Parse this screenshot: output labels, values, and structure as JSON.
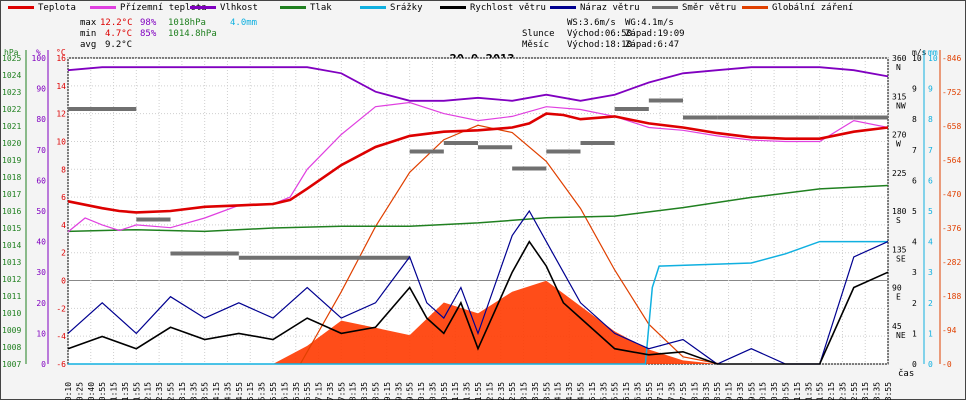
{
  "legend": [
    {
      "label": "Teplota",
      "color": "#dd0000"
    },
    {
      "label": "Přízemní teplota",
      "color": "#e040e0"
    },
    {
      "label": "Vlhkost",
      "color": "#8000c0"
    },
    {
      "label": "Tlak",
      "color": "#208020"
    },
    {
      "label": "Srážky",
      "color": "#10b0e0"
    },
    {
      "label": "Rychlost větru",
      "color": "#000000"
    },
    {
      "label": "Náraz větru",
      "color": "#000090"
    },
    {
      "label": "Směr větru",
      "color": "#707070"
    },
    {
      "label": "Globální záření",
      "color": "#e04000"
    }
  ],
  "stats": {
    "max_label": "max",
    "max_temp": "12.2°C",
    "max_hum": "98%",
    "max_press": "1018hPa",
    "max_rain": "4.0mm",
    "min_label": "min",
    "min_temp": "4.7°C",
    "min_hum": "85%",
    "min_press": "1014.8hPa",
    "avg_label": "avg",
    "avg_temp": "9.2°C",
    "ws": "WS:3.6m/s",
    "wg": "WG:4.1m/s",
    "sun_label": "Slunce",
    "sunrise": "Východ:06:50",
    "sunset": "Západ:19:09",
    "moon_label": "Měsíc",
    "moonrise": "Východ:18:10",
    "moonset": "Západ:6:47"
  },
  "chart_data": {
    "type": "line",
    "title": "20.9.2013",
    "xlabel": "čas",
    "x_ticks": [
      "00:10",
      "00:25",
      "00:40",
      "00:55",
      "01:15",
      "01:35",
      "01:55",
      "02:15",
      "02:35",
      "02:55",
      "03:15",
      "03:35",
      "03:55",
      "04:15",
      "04:35",
      "04:55",
      "05:15",
      "05:35",
      "05:55",
      "06:15",
      "06:35",
      "06:55",
      "07:15",
      "07:35",
      "07:55",
      "08:15",
      "08:35",
      "08:55",
      "09:15",
      "09:35",
      "09:55",
      "10:15",
      "10:35",
      "10:55",
      "11:15",
      "11:35",
      "11:55",
      "12:15",
      "12:35",
      "12:55",
      "13:15",
      "13:35",
      "13:55",
      "14:15",
      "14:35",
      "14:55",
      "15:15",
      "15:35",
      "15:55",
      "16:15",
      "16:35",
      "16:55",
      "17:15",
      "17:35",
      "17:55",
      "18:15",
      "18:35",
      "18:55",
      "19:15",
      "19:35",
      "19:55",
      "20:15",
      "20:35",
      "20:55",
      "21:15",
      "21:35",
      "21:55",
      "22:15",
      "22:35",
      "22:55",
      "23:15",
      "23:35",
      "23:55"
    ],
    "axes": {
      "hpa": {
        "label": "hPa",
        "color": "#208020",
        "ticks": [
          "1025",
          "1024",
          "1023",
          "1022",
          "1021",
          "1020",
          "1019",
          "1018",
          "1017",
          "1016",
          "1015",
          "1014",
          "1013",
          "1012",
          "1011",
          "1010",
          "1009",
          "1008",
          "1007"
        ]
      },
      "pct": {
        "label": "%",
        "color": "#8000c0",
        "ticks": [
          "100",
          "90",
          "80",
          "70",
          "60",
          "50",
          "40",
          "30",
          "20",
          "10",
          "0"
        ]
      },
      "degc": {
        "label": "°C",
        "color": "#dd0000",
        "ticks": [
          "16",
          "14",
          "12",
          "10",
          "8",
          "6",
          "4",
          "2",
          "0",
          "-2",
          "-4",
          "-6"
        ]
      },
      "dir": {
        "label": "m/s",
        "ticks": [
          "360 N",
          "315 NW",
          "270 W",
          "225",
          "180 S",
          "135 SE",
          "90 E",
          "45 NE"
        ]
      },
      "ms": {
        "label": "m/s",
        "color": "#000000",
        "ticks": [
          "10",
          "9",
          "8",
          "7",
          "6",
          "5",
          "4",
          "3",
          "2",
          "1",
          "0"
        ]
      },
      "mm": {
        "label": "mm",
        "color": "#10b0e0",
        "ticks": [
          "10",
          "9",
          "8",
          "7",
          "6",
          "5",
          "4",
          "3",
          "2",
          "1",
          "0"
        ]
      },
      "wm2": {
        "label": "W/m²",
        "color": "#e04000",
        "ticks": [
          "846",
          "752",
          "658",
          "564",
          "470",
          "376",
          "282",
          "188",
          "94",
          "0"
        ]
      }
    },
    "series": [
      {
        "name": "Teplota",
        "color": "#dd0000",
        "unit": "°C",
        "values": [
          [
            0,
            5.7
          ],
          [
            1,
            5.2
          ],
          [
            1.5,
            5.0
          ],
          [
            2,
            4.9
          ],
          [
            3,
            5.0
          ],
          [
            4,
            5.3
          ],
          [
            5,
            5.4
          ],
          [
            6,
            5.5
          ],
          [
            6.5,
            5.8
          ],
          [
            7,
            6.6
          ],
          [
            8,
            8.3
          ],
          [
            9,
            9.6
          ],
          [
            10,
            10.4
          ],
          [
            11,
            10.7
          ],
          [
            12,
            10.8
          ],
          [
            13,
            11.0
          ],
          [
            13.5,
            11.3
          ],
          [
            14,
            12.0
          ],
          [
            14.5,
            11.9
          ],
          [
            15,
            11.6
          ],
          [
            16,
            11.8
          ],
          [
            17,
            11.3
          ],
          [
            18,
            11.0
          ],
          [
            19,
            10.6
          ],
          [
            20,
            10.3
          ],
          [
            21,
            10.2
          ],
          [
            22,
            10.2
          ],
          [
            23,
            10.7
          ],
          [
            24,
            11.0
          ]
        ]
      },
      {
        "name": "Přízemní teplota",
        "color": "#e040e0",
        "unit": "°C",
        "values": [
          [
            0,
            3.5
          ],
          [
            0.5,
            4.5
          ],
          [
            1,
            4.0
          ],
          [
            1.5,
            3.6
          ],
          [
            2,
            4.0
          ],
          [
            3,
            3.8
          ],
          [
            4,
            4.5
          ],
          [
            5,
            5.4
          ],
          [
            6,
            5.5
          ],
          [
            6.5,
            6.0
          ],
          [
            7,
            8.0
          ],
          [
            8,
            10.5
          ],
          [
            9,
            12.5
          ],
          [
            10,
            12.8
          ],
          [
            11,
            12.0
          ],
          [
            12,
            11.5
          ],
          [
            13,
            11.8
          ],
          [
            14,
            12.5
          ],
          [
            15,
            12.3
          ],
          [
            16,
            11.8
          ],
          [
            17,
            11.0
          ],
          [
            18,
            10.8
          ],
          [
            19,
            10.4
          ],
          [
            20,
            10.1
          ],
          [
            21,
            10.0
          ],
          [
            22,
            10.0
          ],
          [
            23,
            11.5
          ],
          [
            24,
            11.0
          ]
        ]
      },
      {
        "name": "Vlhkost",
        "color": "#8000c0",
        "unit": "%",
        "values": [
          [
            0,
            96
          ],
          [
            1,
            97
          ],
          [
            2,
            97
          ],
          [
            3,
            97
          ],
          [
            4,
            97
          ],
          [
            5,
            97
          ],
          [
            6,
            97
          ],
          [
            7,
            97
          ],
          [
            8,
            95
          ],
          [
            9,
            89
          ],
          [
            10,
            86
          ],
          [
            11,
            86
          ],
          [
            12,
            87
          ],
          [
            13,
            86
          ],
          [
            14,
            88
          ],
          [
            15,
            86
          ],
          [
            16,
            88
          ],
          [
            17,
            92
          ],
          [
            18,
            95
          ],
          [
            19,
            96
          ],
          [
            20,
            97
          ],
          [
            21,
            97
          ],
          [
            22,
            97
          ],
          [
            23,
            96
          ],
          [
            24,
            94
          ]
        ]
      },
      {
        "name": "Tlak",
        "color": "#208020",
        "unit": "hPa",
        "values": [
          [
            0,
            1014.8
          ],
          [
            2,
            1014.9
          ],
          [
            4,
            1014.8
          ],
          [
            6,
            1015.0
          ],
          [
            8,
            1015.1
          ],
          [
            10,
            1015.1
          ],
          [
            12,
            1015.3
          ],
          [
            14,
            1015.6
          ],
          [
            16,
            1015.7
          ],
          [
            18,
            1016.2
          ],
          [
            20,
            1016.8
          ],
          [
            22,
            1017.3
          ],
          [
            24,
            1017.5
          ]
        ]
      },
      {
        "name": "Srážky",
        "color": "#10b0e0",
        "unit": "mm",
        "values": [
          [
            0,
            0
          ],
          [
            16.9,
            0
          ],
          [
            17.1,
            2.5
          ],
          [
            17.3,
            3.2
          ],
          [
            20,
            3.3
          ],
          [
            21,
            3.6
          ],
          [
            22,
            4.0
          ],
          [
            24,
            4.0
          ]
        ]
      },
      {
        "name": "Rychlost větru",
        "color": "#000000",
        "unit": "m/s",
        "values": [
          [
            0,
            0.5
          ],
          [
            1,
            0.9
          ],
          [
            2,
            0.5
          ],
          [
            3,
            1.2
          ],
          [
            4,
            0.8
          ],
          [
            5,
            1.0
          ],
          [
            6,
            0.8
          ],
          [
            7,
            1.5
          ],
          [
            8,
            1.0
          ],
          [
            9,
            1.2
          ],
          [
            10,
            2.5
          ],
          [
            10.5,
            1.5
          ],
          [
            11,
            1.0
          ],
          [
            11.5,
            2.0
          ],
          [
            12,
            0.5
          ],
          [
            13,
            3.0
          ],
          [
            13.5,
            4.0
          ],
          [
            14,
            3.2
          ],
          [
            14.5,
            2.0
          ],
          [
            15,
            1.5
          ],
          [
            16,
            0.5
          ],
          [
            17,
            0.3
          ],
          [
            18,
            0.4
          ],
          [
            19,
            0
          ],
          [
            20,
            0
          ],
          [
            21,
            0
          ],
          [
            22,
            0
          ],
          [
            23,
            2.5
          ],
          [
            24,
            3.0
          ]
        ]
      },
      {
        "name": "Náraz větru",
        "color": "#000090",
        "unit": "m/s",
        "values": [
          [
            0,
            1.0
          ],
          [
            1,
            2.0
          ],
          [
            2,
            1.0
          ],
          [
            3,
            2.2
          ],
          [
            4,
            1.5
          ],
          [
            5,
            2.0
          ],
          [
            6,
            1.5
          ],
          [
            7,
            2.5
          ],
          [
            8,
            1.5
          ],
          [
            9,
            2.0
          ],
          [
            10,
            3.5
          ],
          [
            10.5,
            2.0
          ],
          [
            11,
            1.5
          ],
          [
            11.5,
            2.5
          ],
          [
            12,
            1.0
          ],
          [
            13,
            4.2
          ],
          [
            13.5,
            5.0
          ],
          [
            14,
            4.0
          ],
          [
            14.5,
            3.0
          ],
          [
            15,
            2.0
          ],
          [
            16,
            1.0
          ],
          [
            17,
            0.5
          ],
          [
            18,
            0.8
          ],
          [
            19,
            0
          ],
          [
            20,
            0.5
          ],
          [
            21,
            0
          ],
          [
            22,
            0
          ],
          [
            23,
            3.5
          ],
          [
            24,
            4.0
          ]
        ]
      },
      {
        "name": "Směr větru",
        "color": "#707070",
        "unit": "°",
        "values": [
          [
            0,
            300
          ],
          [
            2,
            170
          ],
          [
            3,
            130
          ],
          [
            5,
            125
          ],
          [
            9,
            125
          ],
          [
            10,
            250
          ],
          [
            11,
            260
          ],
          [
            12,
            255
          ],
          [
            13,
            230
          ],
          [
            14,
            250
          ],
          [
            15,
            260
          ],
          [
            16,
            300
          ],
          [
            17,
            310
          ],
          [
            18,
            290
          ],
          [
            19,
            290
          ],
          [
            22,
            290
          ],
          [
            23,
            290
          ],
          [
            24,
            275
          ]
        ]
      },
      {
        "name": "Globální záření",
        "color": "#e04000",
        "unit": "W/m²",
        "values": [
          [
            0,
            0
          ],
          [
            6,
            0
          ],
          [
            7,
            50
          ],
          [
            8,
            120
          ],
          [
            9,
            100
          ],
          [
            10,
            80
          ],
          [
            11,
            170
          ],
          [
            12,
            140
          ],
          [
            13,
            200
          ],
          [
            14,
            230
          ],
          [
            15,
            160
          ],
          [
            16,
            90
          ],
          [
            17,
            40
          ],
          [
            18,
            10
          ],
          [
            19,
            0
          ],
          [
            24,
            0
          ]
        ]
      },
      {
        "name": "Globální záření (teoretické)",
        "color": "#e04000",
        "unit": "W/m²",
        "values": [
          [
            6.8,
            0
          ],
          [
            8,
            200
          ],
          [
            9,
            380
          ],
          [
            10,
            530
          ],
          [
            11,
            620
          ],
          [
            12,
            660
          ],
          [
            13,
            640
          ],
          [
            14,
            560
          ],
          [
            15,
            430
          ],
          [
            16,
            260
          ],
          [
            17,
            110
          ],
          [
            18,
            20
          ],
          [
            19.1,
            0
          ]
        ]
      }
    ]
  }
}
